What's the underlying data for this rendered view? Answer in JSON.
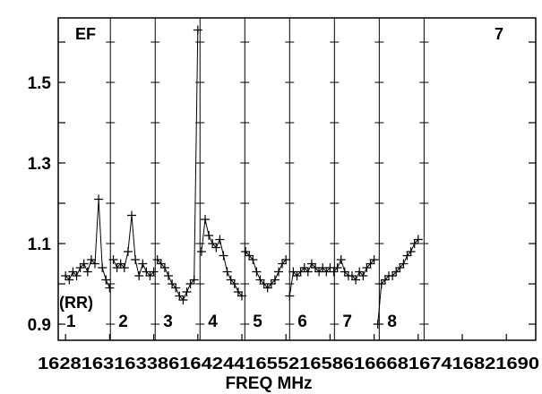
{
  "chart_data": {
    "type": "scatter",
    "xlabel": "FREQ MHz",
    "ylabel": "",
    "ylim": [
      0.86,
      1.66
    ],
    "xlim": [
      1627,
      1692
    ],
    "y_ticks": [
      "0.9",
      "1.1",
      "1.3",
      "1.5"
    ],
    "x_tick_labels": [
      "1628",
      "1634",
      "1640",
      "1646",
      "1652",
      "1658",
      "1664",
      "1670",
      "1676",
      "1682",
      "1688"
    ],
    "x_tick_values": [
      1628,
      1634,
      1640,
      1646,
      1652,
      1658,
      1664,
      1670,
      1676,
      1682,
      1688
    ],
    "x_tick_text": "1628163163386164244165521658616668167416821690",
    "annotations": {
      "top_left": "EF",
      "top_right": "7",
      "polarization": "(RR)"
    },
    "marker": "plus",
    "grid": false,
    "panel_boundaries": [
      1634.1,
      1640.2,
      1646.3,
      1652.4,
      1658.5,
      1664.6,
      1670.7,
      1676.8
    ],
    "panels": [
      {
        "label": "1",
        "x": [
          1628.0,
          1628.5,
          1629.0,
          1629.5,
          1630.0,
          1630.5,
          1631.0,
          1631.5,
          1632.0,
          1632.5,
          1633.0,
          1633.5,
          1634.0
        ],
        "y": [
          1.02,
          1.01,
          1.03,
          1.02,
          1.04,
          1.05,
          1.03,
          1.06,
          1.05,
          1.21,
          1.04,
          1.01,
          0.99
        ]
      },
      {
        "label": "2",
        "x": [
          1634.5,
          1635.0,
          1635.5,
          1636.0,
          1636.5,
          1637.0,
          1637.5,
          1638.0,
          1638.5,
          1639.0,
          1639.5,
          1640.0
        ],
        "y": [
          1.06,
          1.04,
          1.05,
          1.04,
          1.08,
          1.17,
          1.06,
          1.02,
          1.05,
          1.03,
          1.02,
          1.03
        ]
      },
      {
        "label": "3",
        "x": [
          1640.5,
          1641.0,
          1641.5,
          1642.0,
          1642.5,
          1643.0,
          1643.5,
          1644.0,
          1644.5,
          1645.0,
          1645.5,
          1646.0
        ],
        "y": [
          1.06,
          1.05,
          1.04,
          1.02,
          1.0,
          0.99,
          0.97,
          0.96,
          0.98,
          1.0,
          1.01,
          1.63
        ]
      },
      {
        "label": "4",
        "x": [
          1646.5,
          1647.0,
          1647.5,
          1648.0,
          1648.5,
          1649.0,
          1649.5,
          1650.0,
          1650.5,
          1651.0,
          1651.5,
          1652.0
        ],
        "y": [
          1.08,
          1.16,
          1.12,
          1.1,
          1.09,
          1.11,
          1.07,
          1.03,
          1.01,
          1.0,
          0.98,
          0.97
        ]
      },
      {
        "label": "5",
        "x": [
          1652.5,
          1653.0,
          1653.5,
          1654.0,
          1654.5,
          1655.0,
          1655.5,
          1656.0,
          1656.5,
          1657.0,
          1657.5,
          1658.0
        ],
        "y": [
          1.08,
          1.07,
          1.06,
          1.03,
          1.01,
          1.0,
          0.99,
          1.0,
          1.01,
          1.03,
          1.05,
          1.06
        ]
      },
      {
        "label": "6",
        "x": [
          1658.5,
          1659.0,
          1659.5,
          1660.0,
          1660.5,
          1661.0,
          1661.5,
          1662.0,
          1662.5,
          1663.0,
          1663.5,
          1664.0
        ],
        "y": [
          0.97,
          1.03,
          1.02,
          1.03,
          1.04,
          1.03,
          1.05,
          1.04,
          1.03,
          1.04,
          1.03,
          1.04
        ]
      },
      {
        "label": "7",
        "x": [
          1664.5,
          1665.0,
          1665.5,
          1666.0,
          1666.5,
          1667.0,
          1667.5,
          1668.0,
          1668.5,
          1669.0,
          1669.5,
          1670.0
        ],
        "y": [
          1.03,
          1.04,
          1.06,
          1.03,
          1.02,
          1.02,
          1.01,
          1.03,
          1.02,
          1.04,
          1.05,
          1.06
        ]
      },
      {
        "label": "8",
        "x": [
          1670.5,
          1671.0,
          1671.5,
          1672.0,
          1672.5,
          1673.0,
          1673.5,
          1674.0,
          1674.5,
          1675.0,
          1675.5,
          1676.0
        ],
        "y": [
          0.9,
          1.0,
          1.01,
          1.02,
          1.02,
          1.03,
          1.04,
          1.05,
          1.07,
          1.08,
          1.1,
          1.11
        ]
      }
    ]
  }
}
